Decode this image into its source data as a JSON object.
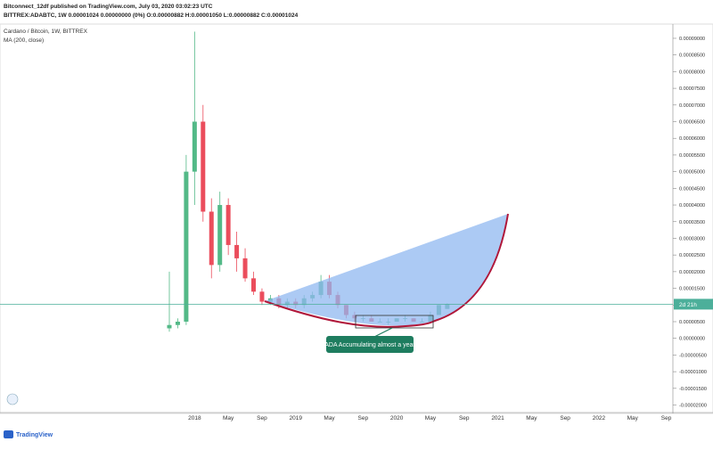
{
  "header": {
    "line1": "Bitconnect_12df published on TradingView.com, July 03, 2020 03:02:23 UTC",
    "line2": "BITTREX:ADABTC, 1W  0.00001024  0.00000000 (0%)  O:0.00000882  H:0.00001050  L:0.00000882  C:0.00001024"
  },
  "footer": {
    "brand": "TradingView"
  },
  "chart_data": {
    "type": "candlestick",
    "title": "Cardano / Bitcoin, 1W, BITTREX",
    "subtitle": "MA (200, close)",
    "annotation": "ADA Accumulating almost a year",
    "countdown": "2d 21h",
    "up_color": "#53b987",
    "down_color": "#eb4d5c",
    "price_line_color": "#4caf9a",
    "categories": [
      null,
      null,
      null,
      "2018",
      null,
      null,
      null,
      "May",
      null,
      null,
      null,
      "Sep",
      null,
      null,
      null,
      "2019",
      null,
      null,
      null,
      "May",
      null,
      null,
      null,
      "Sep",
      null,
      null,
      null,
      "2020",
      null,
      null,
      null,
      "May",
      null,
      null,
      null,
      "Sep",
      null,
      null,
      null,
      "2021",
      null,
      null,
      null,
      "May",
      null,
      null,
      null,
      "Sep",
      null,
      null,
      null,
      "2022",
      null,
      null,
      null,
      "May",
      null,
      null,
      null,
      "Sep",
      null
    ],
    "open": [
      3e-06,
      4e-06,
      5e-06,
      5e-05,
      6.5e-05,
      3.8e-05,
      2.2e-05,
      4e-05,
      2.8e-05,
      2.4e-05,
      1.8e-05,
      1.4e-05,
      1.1e-05,
      1.2e-05,
      1e-05,
      1.1e-05,
      1e-05,
      1.2e-05,
      1.3e-05,
      1.7e-05,
      1.3e-05,
      1e-05,
      7e-06,
      6e-06,
      6e-06,
      5e-06,
      5e-06,
      5e-06,
      6e-06,
      6e-06,
      5e-06,
      5e-06,
      7e-06,
      8.82e-06,
      null,
      null,
      null,
      null,
      null,
      null,
      null,
      null,
      null,
      null,
      null,
      null,
      null,
      null,
      null,
      null,
      null,
      null,
      null,
      null,
      null,
      null,
      null,
      null,
      null,
      null,
      null
    ],
    "high": [
      2e-05,
      6e-06,
      5.5e-05,
      9.2e-05,
      7e-05,
      4.2e-05,
      4.4e-05,
      4.2e-05,
      3.2e-05,
      2.7e-05,
      2e-05,
      1.5e-05,
      1.3e-05,
      1.3e-05,
      1.2e-05,
      1.2e-05,
      1.3e-05,
      1.4e-05,
      1.9e-05,
      1.9e-05,
      1.4e-05,
      1e-05,
      8e-06,
      7e-06,
      7e-06,
      6e-06,
      6e-06,
      6e-06,
      7e-06,
      6e-06,
      6e-06,
      8e-06,
      1e-05,
      1.05e-05,
      null,
      null,
      null,
      null,
      null,
      null,
      null,
      null,
      null,
      null,
      null,
      null,
      null,
      null,
      null,
      null,
      null,
      null,
      null,
      null,
      null,
      null,
      null,
      null,
      null,
      null,
      null
    ],
    "low": [
      2e-06,
      3e-06,
      4e-06,
      4e-05,
      3.5e-05,
      1.8e-05,
      2e-05,
      2.5e-05,
      2e-05,
      1.7e-05,
      1.3e-05,
      1e-05,
      1e-05,
      9e-06,
      9e-06,
      9e-06,
      9e-06,
      1.1e-05,
      1.2e-05,
      1.2e-05,
      9e-06,
      6e-06,
      5e-06,
      5e-06,
      5e-06,
      5e-06,
      4e-06,
      5e-06,
      5e-06,
      5e-06,
      5e-06,
      5e-06,
      7e-06,
      8.82e-06,
      null,
      null,
      null,
      null,
      null,
      null,
      null,
      null,
      null,
      null,
      null,
      null,
      null,
      null,
      null,
      null,
      null,
      null,
      null,
      null,
      null,
      null,
      null,
      null,
      null,
      null,
      null
    ],
    "close": [
      4e-06,
      5e-06,
      5e-05,
      6.5e-05,
      3.8e-05,
      2.2e-05,
      4e-05,
      2.8e-05,
      2.4e-05,
      1.8e-05,
      1.4e-05,
      1.1e-05,
      1.2e-05,
      1e-05,
      1.1e-05,
      1e-05,
      1.2e-05,
      1.3e-05,
      1.7e-05,
      1.3e-05,
      1e-05,
      7e-06,
      6e-06,
      6e-06,
      5e-06,
      5e-06,
      5e-06,
      6e-06,
      6e-06,
      5e-06,
      5e-06,
      7e-06,
      1e-05,
      1.024e-05,
      null,
      null,
      null,
      null,
      null,
      null,
      null,
      null,
      null,
      null,
      null,
      null,
      null,
      null,
      null,
      null,
      null,
      null,
      null,
      null,
      null,
      null,
      null,
      null,
      null,
      null,
      null
    ],
    "ylim": [
      -2.2e-05,
      9.2e-05
    ],
    "yticks": [
      {
        "value": -2e-05,
        "label": "-0.00002000"
      },
      {
        "value": -1.5e-05,
        "label": "-0.00001500"
      },
      {
        "value": -1e-05,
        "label": "-0.00001000"
      },
      {
        "value": -5e-06,
        "label": "-0.00000500"
      },
      {
        "value": 0,
        "label": "0.00000000"
      },
      {
        "value": 5e-06,
        "label": "0.00000500"
      },
      {
        "value": 1e-05,
        "label": "0.00001000"
      },
      {
        "value": 1.5e-05,
        "label": "0.00001500"
      },
      {
        "value": 2e-05,
        "label": "0.00002000"
      },
      {
        "value": 2.5e-05,
        "label": "0.00002500"
      },
      {
        "value": 3e-05,
        "label": "0.00003000"
      },
      {
        "value": 3.5e-05,
        "label": "0.00003500"
      },
      {
        "value": 4e-05,
        "label": "0.00004000"
      },
      {
        "value": 4.5e-05,
        "label": "0.00004500"
      },
      {
        "value": 5e-05,
        "label": "0.00005000"
      },
      {
        "value": 5.5e-05,
        "label": "0.00005500"
      },
      {
        "value": 6e-05,
        "label": "0.00006000"
      },
      {
        "value": 6.5e-05,
        "label": "0.00006500"
      },
      {
        "value": 7e-05,
        "label": "0.00007000"
      },
      {
        "value": 7.5e-05,
        "label": "0.00007500"
      },
      {
        "value": 8e-05,
        "label": "0.00008000"
      },
      {
        "value": 8.5e-05,
        "label": "0.00008500"
      },
      {
        "value": 9e-05,
        "label": "0.00009000"
      }
    ]
  }
}
